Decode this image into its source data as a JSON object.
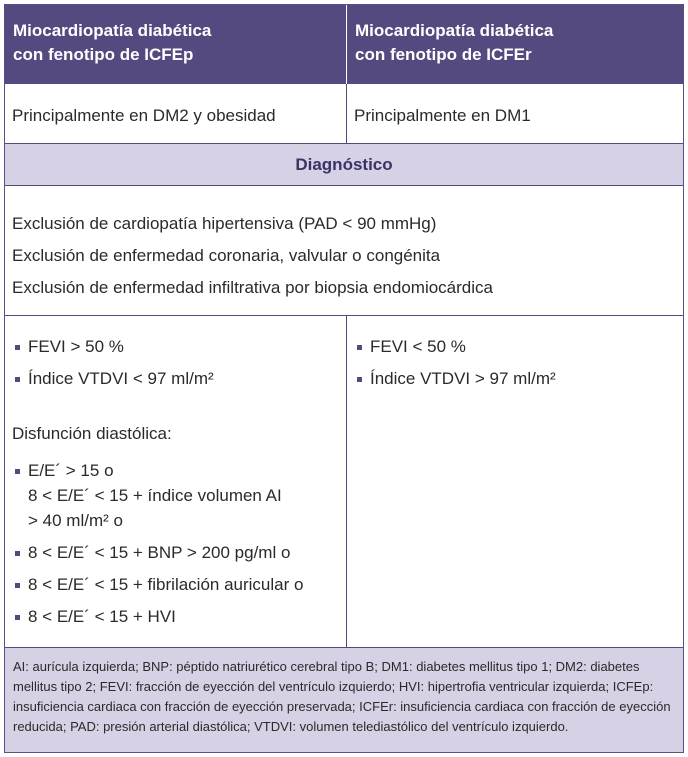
{
  "header": {
    "col1_line1": "Miocardiopatía diabética",
    "col1_line2": "con fenotipo de ICFEp",
    "col2_line1": "Miocardiopatía diabética",
    "col2_line2": "con fenotipo de ICFEr"
  },
  "row_population": {
    "col1": "Principalmente en DM2 y obesidad",
    "col2": "Principalmente en DM1"
  },
  "diagnosis_band": "Diagnóstico",
  "shared_criteria": [
    "Exclusión de cardiopatía hipertensiva (PAD < 90 mmHg)",
    "Exclusión de enfermedad coronaria, valvular o congénita",
    "Exclusión de enfermedad infiltrativa por biopsia endomiocárdica"
  ],
  "icfep_criteria": {
    "items": [
      "FEVI > 50 %",
      "Índice VTDVI < 97 ml/m²"
    ],
    "diastolic_title": "Disfunción diastólica:",
    "diastolic_items": [
      {
        "lines": [
          "E/E´ > 15 o",
          "8 < E/E´ < 15 + índice volumen AI",
          "> 40 ml/m² o"
        ]
      },
      {
        "lines": [
          "8 < E/E´ < 15 + BNP > 200 pg/ml o"
        ]
      },
      {
        "lines": [
          "8 < E/E´ < 15 + fibrilación auricular o"
        ]
      },
      {
        "lines": [
          "8 < E/E´ < 15 + HVI"
        ]
      }
    ]
  },
  "icfer_criteria": {
    "items": [
      "FEVI < 50 %",
      "Índice VTDVI > 97 ml/m²"
    ]
  },
  "footnote": "AI: aurícula izquierda; BNP: péptido natriurético cerebral tipo B; DM1: diabetes mellitus tipo 1; DM2: diabetes mellitus tipo 2; FEVI: fracción de eyección del ventrículo izquierdo; HVI: hipertrofia ventricular izquierda; ICFEp: insuficiencia cardiaca con fracción de eyección preservada; ICFEr: insuficiencia cardiaca con fracción de eyección reducida; PAD: presión arterial diastólica; VTDVI: volumen telediastólico del ventrículo izquierdo.",
  "colors": {
    "header_bg": "#56497f",
    "band_bg": "#d6d1e5",
    "border": "#56497f"
  }
}
